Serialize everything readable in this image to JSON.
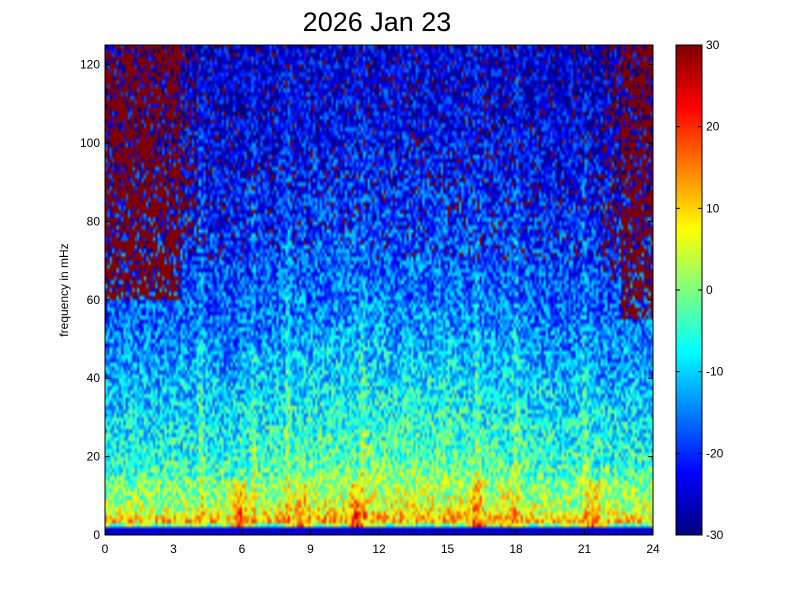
{
  "chart_data": {
    "type": "heatmap",
    "title": "2026 Jan 23",
    "xlabel": "",
    "ylabel": "frequency in mHz",
    "xlim": [
      0,
      24
    ],
    "ylim": [
      0,
      125
    ],
    "x_ticks": [
      "0",
      "3",
      "6",
      "9",
      "12",
      "15",
      "18",
      "21",
      "24"
    ],
    "y_ticks": [
      "0",
      "20",
      "40",
      "60",
      "80",
      "100",
      "120"
    ],
    "colorbar": {
      "colormap": "jet",
      "clim": [
        -30,
        30
      ],
      "ticks": [
        "30",
        "20",
        "10",
        "0",
        "-10",
        "-20",
        "-30"
      ]
    },
    "grid": false,
    "background_level": 30,
    "levels_by_frequency_mHz": [
      {
        "f": 0,
        "level": -28
      },
      {
        "f": 2,
        "level": -22
      },
      {
        "f": 3,
        "level": 12
      },
      {
        "f": 6,
        "level": 4
      },
      {
        "f": 10,
        "level": 0
      },
      {
        "f": 20,
        "level": -6
      },
      {
        "f": 40,
        "level": -12
      },
      {
        "f": 60,
        "level": -18
      },
      {
        "f": 80,
        "level": -21
      },
      {
        "f": 100,
        "level": -24
      },
      {
        "f": 125,
        "level": -26
      }
    ],
    "high_level_regions": [
      {
        "hours": [
          0,
          3.3
        ],
        "above_mHz": 60,
        "level": 30
      },
      {
        "hours": [
          22.6,
          24
        ],
        "above_mHz": 55,
        "level": 30
      }
    ],
    "bursts": [
      {
        "hour": 5.9,
        "level": 26
      },
      {
        "hour": 8.6,
        "level": 22
      },
      {
        "hour": 11.0,
        "level": 28
      },
      {
        "hour": 16.3,
        "level": 28
      },
      {
        "hour": 17.6,
        "level": 16
      },
      {
        "hour": 21.4,
        "level": 22
      }
    ],
    "vertical_streaks_hours": [
      4.2,
      6.5,
      8.0,
      11.3,
      16.3,
      18.0,
      21.0
    ]
  }
}
